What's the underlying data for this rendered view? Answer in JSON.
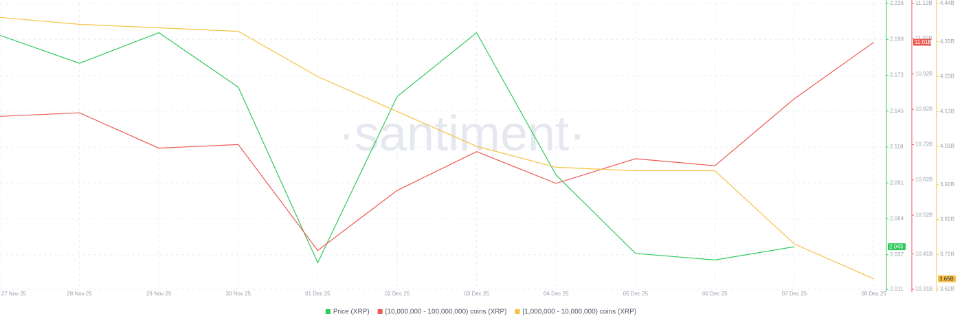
{
  "chart_data": {
    "type": "line",
    "watermark": "·santiment·",
    "x": [
      "27 Nov 25",
      "28 Nov 25",
      "29 Nov 25",
      "30 Nov 25",
      "01 Dec 25",
      "02 Dec 25",
      "03 Dec 25",
      "04 Dec 25",
      "05 Dec 25",
      "06 Dec 25",
      "07 Dec 25",
      "08 Dec 25"
    ],
    "series": [
      {
        "name": "Price (XRP)",
        "color": "#2ec95a",
        "axis": "y",
        "badge": "2.043",
        "values": [
          2.202,
          2.181,
          2.204,
          2.163,
          2.031,
          2.156,
          2.204,
          2.097,
          2.038,
          2.033,
          2.043,
          null
        ]
      },
      {
        "name": "[10,000,000 - 100,000,000) coins (XRP)",
        "color": "#ec5a55",
        "axis": "y2",
        "badge": "11.01B",
        "values": [
          10.8,
          10.81,
          10.71,
          10.72,
          10.42,
          10.59,
          10.7,
          10.61,
          10.68,
          10.66,
          10.85,
          11.01
        ]
      },
      {
        "name": "[1,000,000 - 10,000,000) coins (XRP)",
        "color": "#f5c244",
        "axis": "y3",
        "badge": "3.65B",
        "values": [
          4.4,
          4.38,
          4.37,
          4.36,
          4.23,
          4.13,
          4.03,
          3.97,
          3.96,
          3.96,
          3.75,
          3.65
        ]
      }
    ],
    "ylim": [
      2.011,
      2.226
    ],
    "yticks": [
      2.226,
      2.199,
      2.172,
      2.145,
      2.118,
      2.091,
      2.064,
      2.037,
      2.011
    ],
    "y2lim": [
      10.31,
      11.12
    ],
    "y2ticks": [
      {
        "value": 11.12,
        "label": "11.12B"
      },
      {
        "value": 11.02,
        "label": "11.02B"
      },
      {
        "value": 10.92,
        "label": "10.92B"
      },
      {
        "value": 10.82,
        "label": "10.82B"
      },
      {
        "value": 10.72,
        "label": "10.72B"
      },
      {
        "value": 10.62,
        "label": "10.62B"
      },
      {
        "value": 10.52,
        "label": "10.52B"
      },
      {
        "value": 10.41,
        "label": "10.41B"
      },
      {
        "value": 10.31,
        "label": "10.31B"
      }
    ],
    "y3lim": [
      3.62,
      4.44
    ],
    "y3ticks": [
      {
        "value": 4.44,
        "label": "4.44B"
      },
      {
        "value": 4.33,
        "label": "4.33B"
      },
      {
        "value": 4.23,
        "label": "4.23B"
      },
      {
        "value": 4.13,
        "label": "4.13B"
      },
      {
        "value": 4.03,
        "label": "4.03B"
      },
      {
        "value": 3.92,
        "label": "3.92B"
      },
      {
        "value": 3.82,
        "label": "3.82B"
      },
      {
        "value": 3.72,
        "label": "3.72B"
      },
      {
        "value": 3.62,
        "label": "3.62B"
      }
    ],
    "grid": true
  }
}
